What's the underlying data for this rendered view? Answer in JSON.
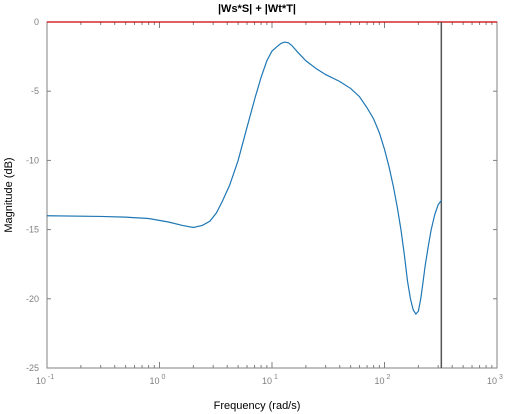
{
  "chart_data": {
    "type": "line",
    "title": "|Ws*S| + |Wt*T|",
    "xlabel": "Frequency  (rad/s)",
    "ylabel": "Magnitude (dB)",
    "xscale": "log",
    "xlim": [
      0.1,
      1000
    ],
    "ylim": [
      -25,
      0
    ],
    "xticks": [
      {
        "base": "10",
        "exp": "-1",
        "value": 0.1
      },
      {
        "base": "10",
        "exp": "0",
        "value": 1
      },
      {
        "base": "10",
        "exp": "1",
        "value": 10
      },
      {
        "base": "10",
        "exp": "2",
        "value": 100
      },
      {
        "base": "10",
        "exp": "3",
        "value": 1000
      }
    ],
    "yticks": [
      0,
      -5,
      -10,
      -15,
      -20,
      -25
    ],
    "grid": false,
    "series": [
      {
        "color": "#1f77b4",
        "x": [
          0.1,
          0.3,
          0.5,
          0.8,
          1.2,
          1.6,
          2.0,
          2.4,
          2.8,
          3.2,
          3.6,
          4.2,
          5.0,
          6.0,
          7.0,
          8.0,
          9.0,
          10.0,
          11.0,
          12.0,
          13.0,
          14.0,
          15.0,
          17.0,
          20.0,
          25.0,
          30.0,
          40.0,
          50.0,
          60.0,
          70.0,
          80.0,
          90.0,
          100.0,
          110.0,
          120.0,
          130.0,
          140.0,
          150.0,
          160.0,
          170.0,
          180.0,
          190.0,
          200.0,
          210.0,
          220.0,
          230.0,
          245.0,
          260.0,
          280.0,
          300.0,
          320.0
        ],
        "y": [
          -14.0,
          -14.05,
          -14.1,
          -14.2,
          -14.45,
          -14.7,
          -14.85,
          -14.7,
          -14.4,
          -13.8,
          -13.0,
          -11.8,
          -10.0,
          -7.6,
          -5.6,
          -4.0,
          -2.8,
          -2.1,
          -1.8,
          -1.55,
          -1.45,
          -1.5,
          -1.7,
          -2.2,
          -2.8,
          -3.4,
          -3.8,
          -4.3,
          -4.8,
          -5.4,
          -6.2,
          -7.0,
          -8.0,
          -9.2,
          -10.5,
          -11.9,
          -13.4,
          -15.0,
          -16.8,
          -18.7,
          -20.0,
          -20.8,
          -21.1,
          -20.9,
          -20.0,
          -18.8,
          -17.6,
          -16.2,
          -15.0,
          -13.9,
          -13.2,
          -12.9
        ]
      }
    ],
    "reference_line": {
      "y": 0,
      "color": "#cc0000"
    },
    "vertical_marker": {
      "x": 320,
      "color": "#555555"
    }
  }
}
